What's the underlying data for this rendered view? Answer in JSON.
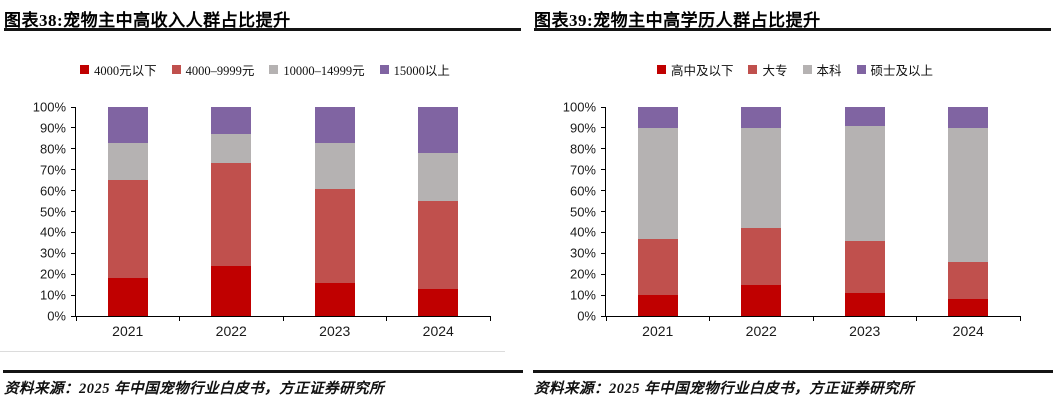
{
  "panels": [
    {
      "title": "图表38:宠物主中高收入人群占比提升",
      "source": "资料来源：2025 年中国宠物行业白皮书，方正证券研究所"
    },
    {
      "title": "图表39:宠物主中高学历人群占比提升",
      "source": "资料来源：2025 年中国宠物行业白皮书，方正证券研究所"
    }
  ],
  "colors": {
    "series_dark_red": "#C00000",
    "series_red": "#C0504D",
    "series_gray": "#B5B2B2",
    "series_purple": "#8064A2",
    "axis": "#000000",
    "rule": "#141414"
  },
  "chart_data": [
    {
      "type": "bar",
      "stacked": true,
      "title": "图表38:宠物主中高收入人群占比提升",
      "categories": [
        "2021",
        "2022",
        "2023",
        "2024"
      ],
      "series": [
        {
          "name": "4000元以下",
          "color": "#C00000",
          "values": [
            18,
            24,
            16,
            13
          ]
        },
        {
          "name": "4000–9999元",
          "color": "#C0504D",
          "values": [
            47,
            49,
            45,
            42
          ]
        },
        {
          "name": "10000–14999元",
          "color": "#B5B2B2",
          "values": [
            18,
            14,
            22,
            23
          ]
        },
        {
          "name": "15000以上",
          "color": "#8064A2",
          "values": [
            17,
            13,
            17,
            22
          ]
        }
      ],
      "xlabel": "",
      "ylabel": "",
      "ylim": [
        0,
        100
      ],
      "yticks": [
        "0%",
        "10%",
        "20%",
        "30%",
        "40%",
        "50%",
        "60%",
        "70%",
        "80%",
        "90%",
        "100%"
      ],
      "legend_position": "top",
      "grid": false
    },
    {
      "type": "bar",
      "stacked": true,
      "title": "图表39:宠物主中高学历人群占比提升",
      "categories": [
        "2021",
        "2022",
        "2023",
        "2024"
      ],
      "series": [
        {
          "name": "高中及以下",
          "color": "#C00000",
          "values": [
            10,
            15,
            11,
            8
          ]
        },
        {
          "name": "大专",
          "color": "#C0504D",
          "values": [
            27,
            27,
            25,
            18
          ]
        },
        {
          "name": "本科",
          "color": "#B5B2B2",
          "values": [
            53,
            48,
            55,
            64
          ]
        },
        {
          "name": "硕士及以上",
          "color": "#8064A2",
          "values": [
            10,
            10,
            9,
            10
          ]
        }
      ],
      "xlabel": "",
      "ylabel": "",
      "ylim": [
        0,
        100
      ],
      "yticks": [
        "0%",
        "10%",
        "20%",
        "30%",
        "40%",
        "50%",
        "60%",
        "70%",
        "80%",
        "90%",
        "100%"
      ],
      "legend_position": "top",
      "grid": false
    }
  ]
}
